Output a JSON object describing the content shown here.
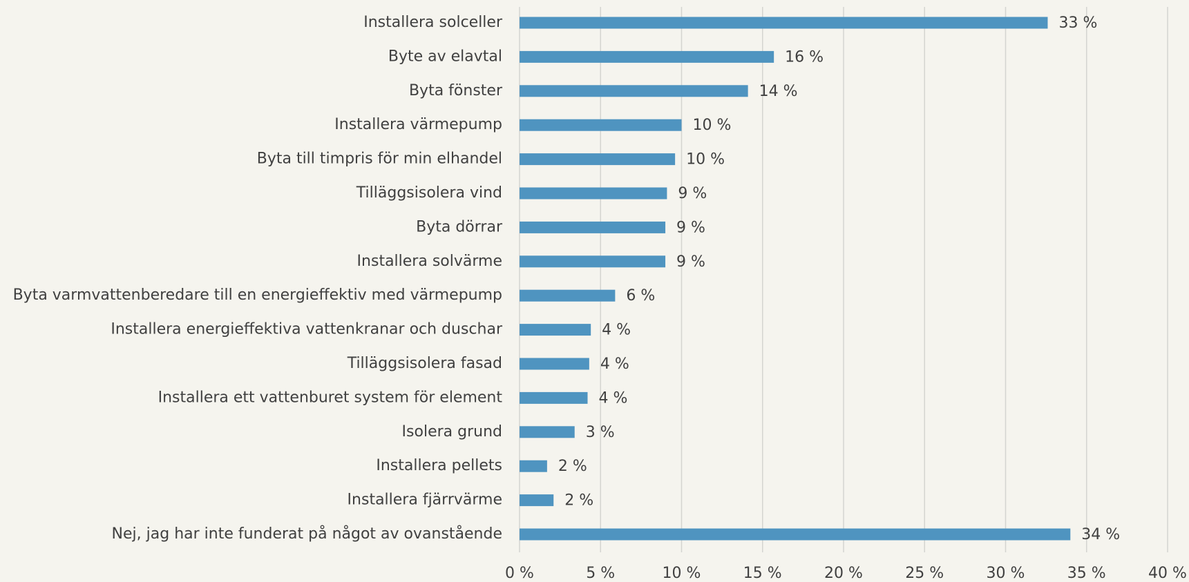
{
  "chart_data": {
    "type": "bar",
    "orientation": "horizontal",
    "categories": [
      "Installera solceller",
      "Byte av elavtal",
      "Byta fönster",
      "Installera värmepump",
      "Byta till timpris för min elhandel",
      "Tilläggsisolera vind",
      "Byta dörrar",
      "Installera solvärme",
      "Byta varmvattenberedare till en energieffektiv med värmepump",
      "Installera energieffektiva vattenkranar och duschar",
      "Tilläggsisolera fasad",
      "Installera ett vattenburet system för element",
      "Isolera grund",
      "Installera pellets",
      "Installera fjärrvärme",
      "Nej, jag har inte funderat på något av ovanstående"
    ],
    "values": [
      32.6,
      15.7,
      14.1,
      10.0,
      9.6,
      9.1,
      9.0,
      9.0,
      5.9,
      4.4,
      4.3,
      4.2,
      3.4,
      1.7,
      2.1,
      34.0
    ],
    "value_labels": [
      "33 %",
      "16 %",
      "14 %",
      "10 %",
      "10 %",
      "9 %",
      "9 %",
      "9 %",
      "6 %",
      "4 %",
      "4 %",
      "4 %",
      "3 %",
      "2 %",
      "2 %",
      "34 %"
    ],
    "color": "#4f94c0",
    "xlim": [
      0,
      40
    ],
    "xticks": [
      {
        "value": 0,
        "label": "0 %"
      },
      {
        "value": 5,
        "label": "5 %"
      },
      {
        "value": 10,
        "label": "10 %"
      },
      {
        "value": 15,
        "label": "15 %"
      },
      {
        "value": 20,
        "label": "20 %"
      },
      {
        "value": 25,
        "label": "25 %"
      },
      {
        "value": 30,
        "label": "30 %"
      },
      {
        "value": 35,
        "label": "35 %"
      },
      {
        "value": 40,
        "label": "40 %"
      }
    ],
    "grid": true
  }
}
